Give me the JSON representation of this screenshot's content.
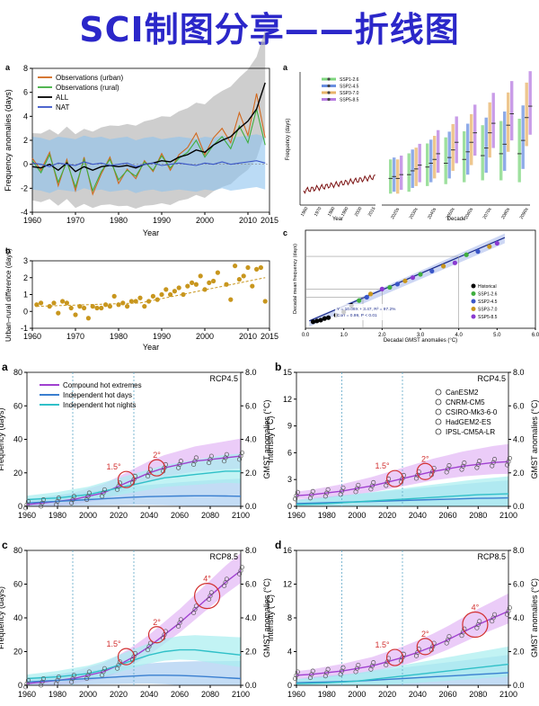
{
  "page_title": "SCI制图分享——折线图",
  "colors": {
    "title": "#2b27c9",
    "urban": "#d2691e",
    "rural": "#3fae3f",
    "all": "#000000",
    "nat": "#3a56c8",
    "ssp126": "#7ed67e",
    "ssp245": "#6a8fe0",
    "ssp370": "#e8b46a",
    "ssp585": "#b77be0",
    "gold": "#c8961e",
    "compound": "#a040d0",
    "days": "#3a7fd0",
    "nights": "#30c0c8",
    "marker": "#d23030"
  },
  "chart_data": [
    {
      "id": "a",
      "panel_label": "a",
      "type": "line",
      "xlabel": "Year",
      "ylabel": "Frequency anomalies (days)",
      "xlim": [
        1960,
        2015
      ],
      "ylim": [
        -4,
        8
      ],
      "x_ticks": [
        1960,
        1970,
        1980,
        1990,
        2000,
        2010,
        2015
      ],
      "y_ticks": [
        -4,
        -2,
        0,
        2,
        4,
        6,
        8
      ],
      "legend": "top-left",
      "x": [
        1960,
        1962,
        1964,
        1966,
        1968,
        1970,
        1972,
        1974,
        1976,
        1978,
        1980,
        1982,
        1984,
        1986,
        1988,
        1990,
        1992,
        1994,
        1996,
        1998,
        2000,
        2002,
        2004,
        2006,
        2008,
        2010,
        2012,
        2014
      ],
      "series": [
        {
          "name": "Observations (urban)",
          "values": [
            0.5,
            -0.5,
            1.0,
            -1.8,
            0.4,
            -2.2,
            0.6,
            -2.5,
            -0.8,
            0.6,
            -1.6,
            -0.4,
            -1.2,
            0.3,
            -0.6,
            0.9,
            -0.5,
            0.8,
            1.4,
            2.6,
            0.8,
            2.2,
            3.0,
            1.8,
            4.3,
            2.4,
            5.9,
            2.2
          ]
        },
        {
          "name": "Observations (rural)",
          "values": [
            0.3,
            -0.7,
            0.8,
            -1.5,
            0.2,
            -1.9,
            0.4,
            -2.2,
            -0.6,
            0.4,
            -1.3,
            -0.5,
            -1.0,
            0.2,
            -0.5,
            0.7,
            -0.3,
            0.5,
            1.0,
            2.0,
            0.6,
            1.6,
            2.3,
            1.3,
            3.2,
            1.8,
            4.6,
            1.6
          ]
        },
        {
          "name": "ALL",
          "values": [
            -0.2,
            -0.3,
            0.0,
            -0.5,
            0.1,
            -0.6,
            -0.2,
            -0.5,
            -0.2,
            -0.1,
            -0.2,
            -0.1,
            -0.3,
            0.0,
            0.1,
            0.3,
            0.2,
            0.6,
            0.8,
            1.2,
            1.0,
            1.6,
            2.0,
            2.3,
            3.0,
            3.6,
            4.6,
            6.8
          ]
        },
        {
          "name": "NAT",
          "values": [
            0.1,
            0.0,
            -0.2,
            0.1,
            0.0,
            -0.1,
            0.2,
            0.0,
            0.1,
            -0.1,
            0.0,
            0.1,
            -0.2,
            0.0,
            0.1,
            -0.1,
            0.0,
            0.1,
            0.0,
            -0.1,
            0.1,
            0.0,
            0.2,
            0.0,
            0.1,
            0.2,
            0.3,
            0.1
          ]
        }
      ]
    },
    {
      "id": "b",
      "panel_label": "b",
      "type": "scatter",
      "xlabel": "Year",
      "ylabel": "Urban–rural difference (days)",
      "xlim": [
        1960,
        2015
      ],
      "ylim": [
        -1,
        3
      ],
      "x_ticks": [
        1960,
        1970,
        1980,
        1990,
        2000,
        2010,
        2015
      ],
      "y_ticks": [
        -1,
        0,
        1,
        2,
        3
      ],
      "x": [
        1961,
        1962,
        1964,
        1965,
        1966,
        1967,
        1968,
        1969,
        1970,
        1971,
        1972,
        1973,
        1974,
        1975,
        1976,
        1977,
        1978,
        1979,
        1980,
        1981,
        1982,
        1983,
        1984,
        1985,
        1986,
        1987,
        1988,
        1989,
        1990,
        1991,
        1992,
        1993,
        1994,
        1995,
        1996,
        1997,
        1998,
        1999,
        2000,
        2001,
        2002,
        2003,
        2005,
        2006,
        2007,
        2008,
        2009,
        2010,
        2011,
        2012,
        2013,
        2014
      ],
      "values": [
        0.4,
        0.5,
        0.3,
        0.5,
        -0.1,
        0.6,
        0.5,
        0.2,
        -0.2,
        0.3,
        0.2,
        -0.4,
        0.3,
        0.2,
        0.2,
        0.4,
        0.3,
        0.9,
        0.4,
        0.5,
        0.3,
        0.6,
        0.6,
        0.8,
        0.3,
        0.6,
        0.9,
        0.7,
        1.0,
        1.3,
        1.0,
        1.2,
        1.4,
        1.0,
        1.5,
        1.7,
        1.6,
        2.1,
        1.3,
        1.7,
        1.8,
        2.3,
        1.6,
        0.7,
        2.7,
        1.9,
        2.1,
        2.6,
        1.5,
        2.5,
        2.6,
        0.6
      ],
      "trend_label": ""
    },
    {
      "id": "c-top-right",
      "panel_label": "a",
      "type": "bar",
      "xlabel": "Year",
      "xlabel2": "Decade",
      "ylabel": "Frequency (days)",
      "legend": [
        "SSP1-2.6",
        "SSP2-4.5",
        "SSP3-7.0",
        "SSP5-8.5"
      ],
      "x_ticks_left": [
        "1960",
        "1970",
        "1980",
        "1990",
        "2000",
        "2015"
      ],
      "x_ticks_right": [
        "2020s",
        "2030s",
        "2040s",
        "2050s",
        "2060s",
        "2070s",
        "2080s",
        "2090s"
      ],
      "decades": [
        "2020s",
        "2030s",
        "2040s",
        "2050s",
        "2060s",
        "2070s",
        "2080s",
        "2090s"
      ],
      "medians": [
        [
          14,
          16,
          20,
          22,
          24,
          26,
          27,
          27
        ],
        [
          15,
          18,
          22,
          25,
          28,
          30,
          32,
          34
        ],
        [
          14,
          19,
          24,
          29,
          33,
          38,
          42,
          46
        ],
        [
          16,
          21,
          27,
          33,
          38,
          43,
          48,
          52
        ]
      ]
    },
    {
      "id": "c-bottom-right",
      "panel_label": "c",
      "type": "scatter",
      "xlabel": "Decadal GMST anomalies (°C)",
      "ylabel": "Decadal mean frequency (days)",
      "legend": [
        "Historical",
        "SSP1-2.6",
        "SSP2-4.5",
        "SSP3-7.0",
        "SSP5-8.5"
      ],
      "x_ticks": [
        "0.0",
        "1.0",
        "2.0",
        "3.0",
        "4.0",
        "5.0",
        "6.0"
      ],
      "equation": "Y = 10.09X + 3.47, R² = 97.2%",
      "corr": "Corr = 0.99, P < 0.01",
      "points": [
        [
          0.2,
          4
        ],
        [
          0.3,
          4.5
        ],
        [
          0.4,
          5
        ],
        [
          0.5,
          6
        ],
        [
          0.6,
          6.5
        ],
        [
          0.8,
          8
        ],
        [
          1.0,
          10
        ],
        [
          1.2,
          14
        ],
        [
          1.4,
          17
        ],
        [
          1.6,
          19
        ],
        [
          1.7,
          21
        ],
        [
          2.0,
          24
        ],
        [
          2.2,
          25
        ],
        [
          2.4,
          27
        ],
        [
          2.6,
          29
        ],
        [
          2.8,
          31
        ],
        [
          3.0,
          33
        ],
        [
          3.3,
          35
        ],
        [
          3.6,
          38
        ],
        [
          3.9,
          40
        ],
        [
          4.2,
          45
        ],
        [
          4.5,
          47
        ],
        [
          4.8,
          50
        ],
        [
          5.0,
          52
        ]
      ]
    },
    {
      "id": "rcp-a",
      "panel_label": "a",
      "scenario": "RCP4.5",
      "type": "line",
      "ylabel": "Frequency (days)",
      "ylabel2": "GMST anomalies (°C)",
      "xlim": [
        1960,
        2100
      ],
      "ylim": [
        0,
        80
      ],
      "y_ticks": [
        "0",
        "20",
        "40",
        "60",
        "80"
      ],
      "y2_ticks": [
        "0.0",
        "2.0",
        "4.0",
        "6.0",
        "8.0"
      ],
      "x_ticks": [
        "1960",
        "1980",
        "2000",
        "2020",
        "2040",
        "2060",
        "2080",
        "2100"
      ],
      "legend": [
        "Compound hot extremes",
        "Independent hot days",
        "Independent hot nights"
      ],
      "markers": [
        "1.5°",
        "2°"
      ],
      "x": [
        1960,
        1970,
        1980,
        1990,
        2000,
        2010,
        2020,
        2030,
        2040,
        2050,
        2060,
        2070,
        2080,
        2090,
        2100
      ],
      "series": [
        {
          "name": "Compound hot extremes",
          "values": [
            1,
            2,
            3,
            4,
            6,
            8,
            12,
            16,
            20,
            23,
            25,
            27,
            28,
            29,
            30
          ]
        },
        {
          "name": "Independent hot days",
          "values": [
            2,
            2.5,
            3,
            3.5,
            4,
            4.5,
            5,
            5.5,
            5.8,
            6,
            6.2,
            6.3,
            6.3,
            6.2,
            6
          ]
        },
        {
          "name": "Independent hot nights",
          "values": [
            4,
            4.5,
            5,
            6,
            7,
            9,
            11,
            13,
            15,
            17,
            18,
            19,
            20,
            21,
            21
          ]
        }
      ]
    },
    {
      "id": "rcp-b",
      "panel_label": "b",
      "scenario": "RCP4.5",
      "type": "line",
      "ylabel": "Intensity (°C)",
      "ylabel2": "GMST anomalies (°C)",
      "xlim": [
        1960,
        2100
      ],
      "ylim": [
        0,
        15
      ],
      "y_ticks": [
        "0",
        "3",
        "6",
        "9",
        "12",
        "15"
      ],
      "y2_ticks": [
        "0.0",
        "2.0",
        "4.0",
        "6.0",
        "8.0"
      ],
      "x_ticks": [
        "1960",
        "1980",
        "2000",
        "2020",
        "2040",
        "2060",
        "2080",
        "2100"
      ],
      "legend": [
        "CanESM2",
        "CNRM-CM5",
        "CSIRO-Mk3-6-0",
        "HadGEM2-ES",
        "IPSL-CM5A-LR"
      ],
      "markers": [
        "1.5°",
        "2°"
      ],
      "x": [
        1960,
        1970,
        1980,
        1990,
        2000,
        2010,
        2020,
        2030,
        2040,
        2050,
        2060,
        2070,
        2080,
        2090,
        2100
      ],
      "series": [
        {
          "name": "Compound hot extremes",
          "values": [
            1.2,
            1.3,
            1.5,
            1.7,
            2.0,
            2.3,
            2.7,
            3.1,
            3.5,
            3.9,
            4.2,
            4.5,
            4.7,
            4.9,
            5.0
          ]
        },
        {
          "name": "Independent hot days",
          "values": [
            0.3,
            0.35,
            0.4,
            0.45,
            0.5,
            0.55,
            0.6,
            0.65,
            0.7,
            0.75,
            0.8,
            0.85,
            0.9,
            0.92,
            0.95
          ]
        },
        {
          "name": "Independent hot nights",
          "values": [
            0.2,
            0.25,
            0.3,
            0.4,
            0.5,
            0.6,
            0.7,
            0.8,
            0.9,
            1.0,
            1.1,
            1.2,
            1.3,
            1.35,
            1.4
          ]
        }
      ]
    },
    {
      "id": "rcp-c",
      "panel_label": "c",
      "scenario": "RCP8.5",
      "type": "line",
      "ylabel": "Frequency (days)",
      "ylabel2": "GMST anomalies (°C)",
      "xlim": [
        1960,
        2100
      ],
      "ylim": [
        0,
        80
      ],
      "y_ticks": [
        "0",
        "20",
        "40",
        "60",
        "80"
      ],
      "y2_ticks": [
        "0.0",
        "2.0",
        "4.0",
        "6.0",
        "8.0"
      ],
      "x_ticks": [
        "1960",
        "1980",
        "2000",
        "2020",
        "2040",
        "2060",
        "2080",
        "2100"
      ],
      "markers": [
        "1.5°",
        "2°",
        "4°"
      ],
      "x": [
        1960,
        1970,
        1980,
        1990,
        2000,
        2010,
        2020,
        2030,
        2040,
        2050,
        2060,
        2070,
        2080,
        2090,
        2100
      ],
      "series": [
        {
          "name": "Compound hot extremes",
          "values": [
            1,
            2,
            3,
            4,
            6,
            8,
            12,
            17,
            23,
            30,
            37,
            45,
            53,
            61,
            68
          ]
        },
        {
          "name": "Independent hot days",
          "values": [
            2,
            2.5,
            3,
            3.5,
            4,
            4.5,
            5,
            5.5,
            6,
            6,
            5.8,
            5.5,
            5,
            4.5,
            4
          ]
        },
        {
          "name": "Independent hot nights",
          "values": [
            4,
            4.5,
            5,
            6,
            7,
            9,
            12,
            15,
            18,
            20,
            21,
            21,
            20,
            19,
            18
          ]
        }
      ]
    },
    {
      "id": "rcp-d",
      "panel_label": "d",
      "scenario": "RCP8.5",
      "type": "line",
      "ylabel": "Intensity (°C)",
      "ylabel2": "GMST anomalies (°C)",
      "xlim": [
        1960,
        2100
      ],
      "ylim": [
        0,
        16
      ],
      "y_ticks": [
        "0",
        "4",
        "8",
        "12",
        "16"
      ],
      "y2_ticks": [
        "0.0",
        "2.0",
        "4.0",
        "6.0",
        "8.0"
      ],
      "x_ticks": [
        "1960",
        "1980",
        "2000",
        "2020",
        "2040",
        "2060",
        "2080",
        "2100"
      ],
      "markers": [
        "1.5°",
        "2°",
        "4°"
      ],
      "x": [
        1960,
        1970,
        1980,
        1990,
        2000,
        2010,
        2020,
        2030,
        2040,
        2050,
        2060,
        2070,
        2080,
        2090,
        2100
      ],
      "series": [
        {
          "name": "Compound hot extremes",
          "values": [
            1.2,
            1.3,
            1.5,
            1.7,
            2.0,
            2.3,
            2.8,
            3.3,
            3.9,
            4.6,
            5.4,
            6.3,
            7.2,
            8.0,
            8.8
          ]
        },
        {
          "name": "Independent hot days",
          "values": [
            0.3,
            0.35,
            0.4,
            0.45,
            0.5,
            0.6,
            0.7,
            0.8,
            0.9,
            1.0,
            1.1,
            1.2,
            1.3,
            1.4,
            1.5
          ]
        },
        {
          "name": "Independent hot nights",
          "values": [
            0.2,
            0.25,
            0.3,
            0.4,
            0.5,
            0.7,
            0.9,
            1.1,
            1.3,
            1.5,
            1.7,
            1.9,
            2.1,
            2.3,
            2.5
          ]
        }
      ]
    }
  ]
}
